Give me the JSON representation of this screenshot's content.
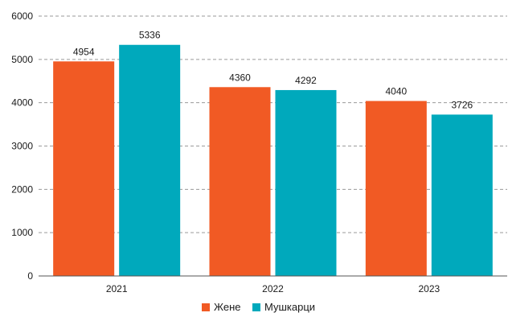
{
  "chart_data": {
    "type": "bar",
    "categories": [
      "2021",
      "2022",
      "2023"
    ],
    "series": [
      {
        "name": "Жене",
        "values": [
          4954,
          4360,
          4040
        ],
        "color": "#f15a24"
      },
      {
        "name": "Мушкарци",
        "values": [
          5336,
          4292,
          3726
        ],
        "color": "#00a9bc"
      }
    ],
    "y_ticks": [
      "0",
      "1000",
      "2000",
      "3000",
      "4000",
      "5000",
      "6000"
    ],
    "ylim": [
      0,
      6000
    ],
    "grid": true,
    "legend_position": "bottom-center"
  }
}
